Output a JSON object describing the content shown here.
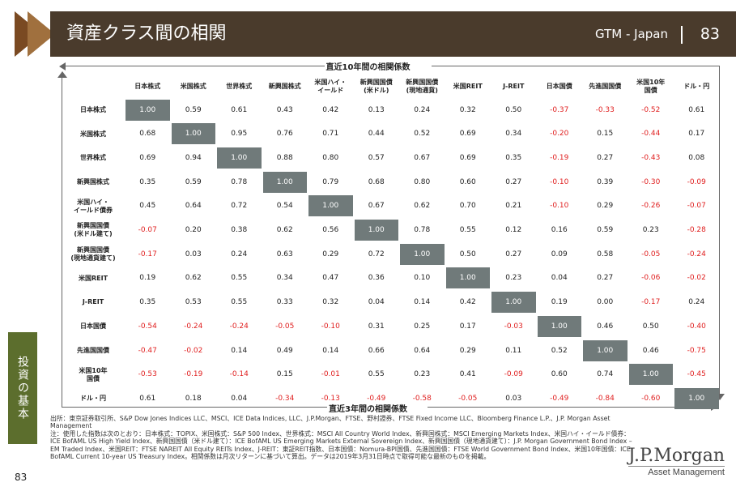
{
  "header": {
    "title": "資産クラス間の相関",
    "tag": "GTM - Japan",
    "page": "83"
  },
  "matrix_top_label": "直近10年間の相関係数",
  "matrix_bottom_label": "直近3年間の相関係数",
  "columns": [
    "日本株式",
    "米国株式",
    "世界株式",
    "新興国株式",
    "米国ハイ・\nイールド",
    "新興国国債\n(米ドル)",
    "新興国国債\n(現地通貨)",
    "米国REIT",
    "J-REIT",
    "日本国債",
    "先進国国債",
    "米国10年\n国債",
    "ドル・円"
  ],
  "rows": [
    "日本株式",
    "米国株式",
    "世界株式",
    "新興国株式",
    "米国ハイ・\nイールド債券",
    "新興国国債\n(米ドル建て)",
    "新興国国債\n(現地通貨建て)",
    "米国REIT",
    "J-REIT",
    "日本国債",
    "先進国国債",
    "米国10年\n国債",
    "ドル・円"
  ],
  "values": [
    [
      "1.00",
      "0.59",
      "0.61",
      "0.43",
      "0.42",
      "0.13",
      "0.24",
      "0.32",
      "0.50",
      "-0.37",
      "-0.33",
      "-0.52",
      "0.61"
    ],
    [
      "0.68",
      "1.00",
      "0.95",
      "0.76",
      "0.71",
      "0.44",
      "0.52",
      "0.69",
      "0.34",
      "-0.20",
      "0.15",
      "-0.44",
      "0.17"
    ],
    [
      "0.69",
      "0.94",
      "1.00",
      "0.88",
      "0.80",
      "0.57",
      "0.67",
      "0.69",
      "0.35",
      "-0.19",
      "0.27",
      "-0.43",
      "0.08"
    ],
    [
      "0.35",
      "0.59",
      "0.78",
      "1.00",
      "0.79",
      "0.68",
      "0.80",
      "0.60",
      "0.27",
      "-0.10",
      "0.39",
      "-0.30",
      "-0.09"
    ],
    [
      "0.45",
      "0.64",
      "0.72",
      "0.54",
      "1.00",
      "0.67",
      "0.62",
      "0.70",
      "0.21",
      "-0.10",
      "0.29",
      "-0.26",
      "-0.07"
    ],
    [
      "-0.07",
      "0.20",
      "0.38",
      "0.62",
      "0.56",
      "1.00",
      "0.78",
      "0.55",
      "0.12",
      "0.16",
      "0.59",
      "0.23",
      "-0.28"
    ],
    [
      "-0.17",
      "0.03",
      "0.24",
      "0.63",
      "0.29",
      "0.72",
      "1.00",
      "0.50",
      "0.27",
      "0.09",
      "0.58",
      "-0.05",
      "-0.24"
    ],
    [
      "0.19",
      "0.62",
      "0.55",
      "0.34",
      "0.47",
      "0.36",
      "0.10",
      "1.00",
      "0.23",
      "0.04",
      "0.27",
      "-0.06",
      "-0.02"
    ],
    [
      "0.35",
      "0.53",
      "0.55",
      "0.33",
      "0.32",
      "0.04",
      "0.14",
      "0.42",
      "1.00",
      "0.19",
      "0.00",
      "-0.17",
      "0.24"
    ],
    [
      "-0.54",
      "-0.24",
      "-0.24",
      "-0.05",
      "-0.10",
      "0.31",
      "0.25",
      "0.17",
      "-0.03",
      "1.00",
      "0.46",
      "0.50",
      "-0.40"
    ],
    [
      "-0.47",
      "-0.02",
      "0.14",
      "0.49",
      "0.14",
      "0.66",
      "0.64",
      "0.29",
      "0.11",
      "0.52",
      "1.00",
      "0.46",
      "-0.75"
    ],
    [
      "-0.53",
      "-0.19",
      "-0.14",
      "0.15",
      "-0.01",
      "0.55",
      "0.23",
      "0.41",
      "-0.09",
      "0.60",
      "0.74",
      "1.00",
      "-0.45"
    ],
    [
      "0.61",
      "0.18",
      "0.04",
      "-0.34",
      "-0.13",
      "-0.49",
      "-0.58",
      "-0.05",
      "0.03",
      "-0.49",
      "-0.84",
      "-0.60",
      "1.00"
    ]
  ],
  "colors": {
    "diag": "#707a7a",
    "negative": "#e02020",
    "header_band": "#4a3b2c",
    "side_tab": "#5c6e2d"
  },
  "side_tab": "投資の基本",
  "footer": {
    "source": "出所：東京証券取引所、S&P Dow Jones Indices LLC、MSCI、ICE Data Indices, LLC、J.P.Morgan、FTSE、野村證券、FTSE Fixed Income LLC、Bloomberg Finance L.P.、J.P. Morgan Asset Management",
    "note": "注：使用した指数は次のとおり：日本株式：TOPIX、米国株式：S&P 500 Index、世界株式：MSCI All Country World Index、新興国株式：MSCI Emerging Markets Index、米国ハイ・イールド債券：ICE BofAML US High Yield Index、新興国国債（米ドル建て）：ICE BofAML US Emerging Markets External Sovereign Index、新興国国債（現地通貨建て）：J.P. Morgan Government Bond Index – EM Traded Index、米国REIT：FTSE NAREIT All Equity REITs Index、J-REIT：東証REIT指数、日本国債：Nomura-BPI国債、先進国国債：FTSE World Government Bond Index、米国10年国債：ICE BofAML Current 10-year US Treasury Index。相関係数は月次リターンに基づいて算出。データは2019年3月31日時点で取得可能な最新のものを掲載。"
  },
  "page_number": "83",
  "logo": {
    "name": "J.P.Morgan",
    "sub": "Asset Management"
  }
}
